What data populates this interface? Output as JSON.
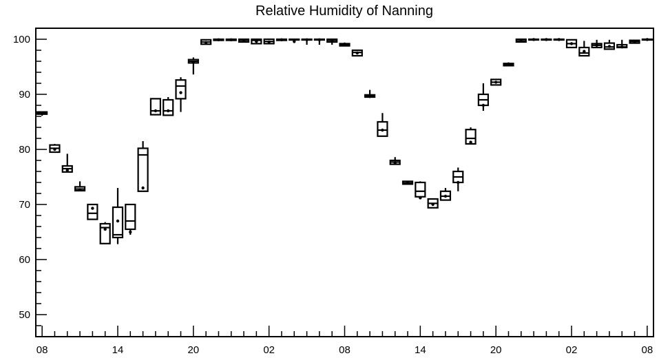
{
  "chart_data": {
    "type": "box",
    "title": "Relative Humidity of Nanning",
    "xlabel": "",
    "ylabel": "",
    "xlim": [
      -0.5,
      48.5
    ],
    "ylim": [
      46,
      102
    ],
    "yticks_major": [
      50,
      60,
      70,
      80,
      90,
      100
    ],
    "ytick_minor_step": 2,
    "xtick_positions": [
      0,
      6,
      12,
      18,
      24,
      30,
      36,
      42,
      48
    ],
    "xtick_labels": [
      "08",
      "14",
      "20",
      "02",
      "08",
      "14",
      "20",
      "02",
      "08"
    ],
    "grid": false,
    "legend": "none",
    "boxes": [
      {
        "x": 0,
        "q1": 86.4,
        "median": 86.6,
        "q3": 86.8,
        "low": 86.1,
        "high": 86.8,
        "mean": 86.5
      },
      {
        "x": 1,
        "q1": 79.5,
        "median": 80.2,
        "q3": 80.8,
        "low": 79.5,
        "high": 81.0,
        "mean": 80.0
      },
      {
        "x": 2,
        "q1": 75.9,
        "median": 76.5,
        "q3": 77.0,
        "low": 75.9,
        "high": 79.2,
        "mean": 76.2
      },
      {
        "x": 3,
        "q1": 72.5,
        "median": 72.8,
        "q3": 73.2,
        "low": 72.4,
        "high": 74.2,
        "mean": 72.7
      },
      {
        "x": 4,
        "q1": 67.3,
        "median": 68.4,
        "q3": 70.0,
        "low": 67.3,
        "high": 70.0,
        "mean": 69.3
      },
      {
        "x": 5,
        "q1": 62.9,
        "median": 65.8,
        "q3": 66.5,
        "low": 62.9,
        "high": 66.8,
        "mean": 65.5
      },
      {
        "x": 6,
        "q1": 64.0,
        "median": 64.5,
        "q3": 69.5,
        "low": 62.8,
        "high": 73.0,
        "mean": 67.0
      },
      {
        "x": 7,
        "q1": 65.5,
        "median": 67.0,
        "q3": 70.0,
        "low": 64.5,
        "high": 70.0,
        "mean": 65.0
      },
      {
        "x": 8,
        "q1": 72.4,
        "median": 79.0,
        "q3": 80.2,
        "low": 72.4,
        "high": 81.5,
        "mean": 73.0
      },
      {
        "x": 9,
        "q1": 86.3,
        "median": 87.0,
        "q3": 89.2,
        "low": 86.3,
        "high": 89.2,
        "mean": 87.0
      },
      {
        "x": 10,
        "q1": 86.2,
        "median": 87.0,
        "q3": 89.0,
        "low": 86.2,
        "high": 89.5,
        "mean": 87.0
      },
      {
        "x": 11,
        "q1": 89.2,
        "median": 91.5,
        "q3": 92.6,
        "low": 86.8,
        "high": 93.1,
        "mean": 90.3
      },
      {
        "x": 12,
        "q1": 95.7,
        "median": 96.0,
        "q3": 96.3,
        "low": 93.6,
        "high": 96.7,
        "mean": 95.8
      },
      {
        "x": 13,
        "q1": 99.1,
        "median": 99.5,
        "q3": 99.9,
        "low": 99.0,
        "high": 99.9,
        "mean": 99.4
      },
      {
        "x": 14,
        "q1": 99.8,
        "median": 99.9,
        "q3": 100.0,
        "low": 99.8,
        "high": 100.0,
        "mean": 99.9
      },
      {
        "x": 15,
        "q1": 99.8,
        "median": 99.9,
        "q3": 100.0,
        "low": 99.8,
        "high": 100.0,
        "mean": 99.9
      },
      {
        "x": 16,
        "q1": 99.5,
        "median": 99.8,
        "q3": 100.0,
        "low": 99.5,
        "high": 100.0,
        "mean": 99.7
      },
      {
        "x": 17,
        "q1": 99.2,
        "median": 99.8,
        "q3": 100.0,
        "low": 99.2,
        "high": 100.0,
        "mean": 99.6
      },
      {
        "x": 18,
        "q1": 99.2,
        "median": 99.6,
        "q3": 100.0,
        "low": 99.2,
        "high": 100.0,
        "mean": 99.5
      },
      {
        "x": 19,
        "q1": 99.8,
        "median": 99.9,
        "q3": 100.0,
        "low": 99.8,
        "high": 100.0,
        "mean": 99.9
      },
      {
        "x": 20,
        "q1": 99.9,
        "median": 99.95,
        "q3": 100.0,
        "low": 99.3,
        "high": 100.0,
        "mean": 99.6
      },
      {
        "x": 21,
        "q1": 99.9,
        "median": 99.95,
        "q3": 100.0,
        "low": 99.0,
        "high": 100.0,
        "mean": 99.9
      },
      {
        "x": 22,
        "q1": 99.9,
        "median": 99.95,
        "q3": 100.0,
        "low": 99.0,
        "high": 100.0,
        "mean": 99.9
      },
      {
        "x": 23,
        "q1": 99.5,
        "median": 99.8,
        "q3": 100.0,
        "low": 99.0,
        "high": 100.0,
        "mean": 99.7
      },
      {
        "x": 24,
        "q1": 98.8,
        "median": 99.0,
        "q3": 99.2,
        "low": 98.8,
        "high": 99.4,
        "mean": 99.0
      },
      {
        "x": 25,
        "q1": 97.0,
        "median": 97.6,
        "q3": 98.0,
        "low": 97.0,
        "high": 98.0,
        "mean": 97.5
      },
      {
        "x": 26,
        "q1": 89.5,
        "median": 89.7,
        "q3": 89.9,
        "low": 89.5,
        "high": 90.8,
        "mean": 89.6
      },
      {
        "x": 27,
        "q1": 82.4,
        "median": 83.5,
        "q3": 85.0,
        "low": 82.4,
        "high": 86.6,
        "mean": 83.5
      },
      {
        "x": 28,
        "q1": 77.3,
        "median": 77.7,
        "q3": 78.0,
        "low": 77.3,
        "high": 78.6,
        "mean": 77.6
      },
      {
        "x": 29,
        "q1": 73.7,
        "median": 73.9,
        "q3": 74.2,
        "low": 73.7,
        "high": 74.2,
        "mean": 73.9
      },
      {
        "x": 30,
        "q1": 71.4,
        "median": 72.4,
        "q3": 74.0,
        "low": 71.1,
        "high": 74.2,
        "mean": 71.2
      },
      {
        "x": 31,
        "q1": 69.4,
        "median": 70.2,
        "q3": 71.0,
        "low": 69.4,
        "high": 71.0,
        "mean": 70.0
      },
      {
        "x": 32,
        "q1": 70.8,
        "median": 71.5,
        "q3": 72.4,
        "low": 70.8,
        "high": 73.0,
        "mean": 71.5
      },
      {
        "x": 33,
        "q1": 74.0,
        "median": 75.0,
        "q3": 76.0,
        "low": 72.4,
        "high": 76.7,
        "mean": 74.0
      },
      {
        "x": 34,
        "q1": 81.0,
        "median": 82.0,
        "q3": 83.6,
        "low": 81.0,
        "high": 84.0,
        "mean": 81.3
      },
      {
        "x": 35,
        "q1": 88.0,
        "median": 89.0,
        "q3": 90.0,
        "low": 87.0,
        "high": 92.0,
        "mean": 88.0
      },
      {
        "x": 36,
        "q1": 91.7,
        "median": 92.2,
        "q3": 92.7,
        "low": 91.7,
        "high": 92.7,
        "mean": 92.2
      },
      {
        "x": 37,
        "q1": 95.2,
        "median": 95.4,
        "q3": 95.6,
        "low": 95.2,
        "high": 95.8,
        "mean": 95.4
      },
      {
        "x": 38,
        "q1": 99.5,
        "median": 99.7,
        "q3": 100.0,
        "low": 99.5,
        "high": 100.0,
        "mean": 99.7
      },
      {
        "x": 39,
        "q1": 99.9,
        "median": 99.95,
        "q3": 100.0,
        "low": 99.9,
        "high": 100.0,
        "mean": 99.95
      },
      {
        "x": 40,
        "q1": 99.9,
        "median": 99.95,
        "q3": 100.0,
        "low": 99.9,
        "high": 100.0,
        "mean": 99.95
      },
      {
        "x": 41,
        "q1": 99.9,
        "median": 99.95,
        "q3": 100.0,
        "low": 99.9,
        "high": 100.0,
        "mean": 99.95
      },
      {
        "x": 42,
        "q1": 98.5,
        "median": 99.2,
        "q3": 99.9,
        "low": 98.5,
        "high": 99.9,
        "mean": 99.2
      },
      {
        "x": 43,
        "q1": 97.0,
        "median": 97.5,
        "q3": 98.5,
        "low": 97.0,
        "high": 99.7,
        "mean": 97.8
      },
      {
        "x": 44,
        "q1": 98.5,
        "median": 98.9,
        "q3": 99.2,
        "low": 98.5,
        "high": 99.9,
        "mean": 98.9
      },
      {
        "x": 45,
        "q1": 98.2,
        "median": 98.6,
        "q3": 99.3,
        "low": 98.2,
        "high": 99.9,
        "mean": 98.7
      },
      {
        "x": 46,
        "q1": 98.5,
        "median": 98.6,
        "q3": 99.0,
        "low": 98.5,
        "high": 99.9,
        "mean": 98.6
      },
      {
        "x": 47,
        "q1": 99.3,
        "median": 99.6,
        "q3": 99.8,
        "low": 99.3,
        "high": 99.8,
        "mean": 99.6
      },
      {
        "x": 48,
        "q1": 99.9,
        "median": 99.95,
        "q3": 100.0,
        "low": 99.9,
        "high": 100.0,
        "mean": 99.95
      }
    ]
  }
}
